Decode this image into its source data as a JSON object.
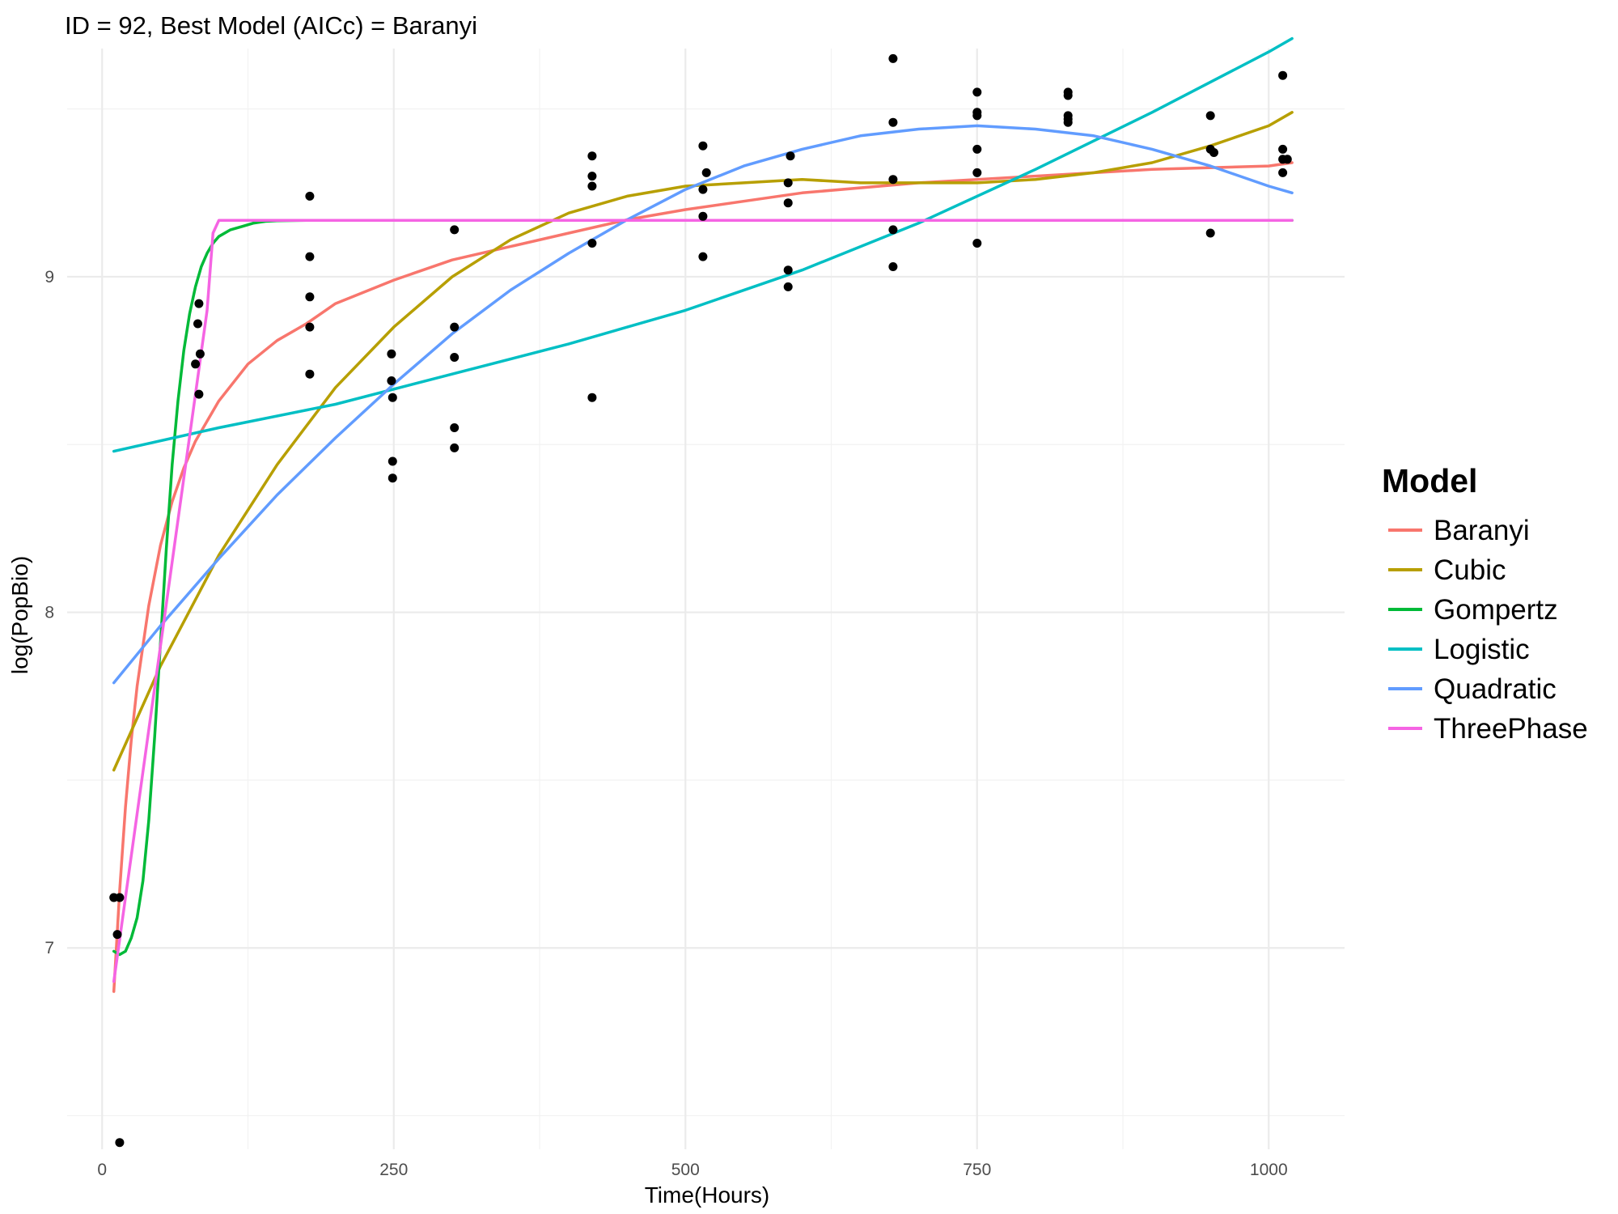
{
  "chart_data": {
    "type": "scatter",
    "title": "ID = 92, Best Model (AICc) = Baranyi",
    "xlabel": "Time(Hours)",
    "ylabel": "log(PopBio)",
    "xlim": [
      -30,
      1065
    ],
    "ylim": [
      6.4,
      9.68
    ],
    "x_ticks": [
      0,
      250,
      500,
      750,
      1000
    ],
    "x_tick_labels": [
      "0",
      "250",
      "500",
      "750",
      "1000"
    ],
    "y_ticks": [
      7,
      8,
      9
    ],
    "y_tick_labels": [
      "7",
      "8",
      "9"
    ],
    "grid": true,
    "legend_position": "right",
    "legend_title": "Model",
    "points": [
      [
        10,
        7.15
      ],
      [
        13,
        7.04
      ],
      [
        15,
        7.15
      ],
      [
        15,
        6.42
      ],
      [
        80,
        8.74
      ],
      [
        82,
        8.86
      ],
      [
        83,
        8.92
      ],
      [
        84,
        8.77
      ],
      [
        83,
        8.65
      ],
      [
        178,
        9.24
      ],
      [
        178,
        9.06
      ],
      [
        178,
        8.94
      ],
      [
        178,
        8.85
      ],
      [
        178,
        8.71
      ],
      [
        248,
        8.77
      ],
      [
        248,
        8.69
      ],
      [
        249,
        8.64
      ],
      [
        249,
        8.45
      ],
      [
        249,
        8.4
      ],
      [
        302,
        9.14
      ],
      [
        302,
        8.85
      ],
      [
        302,
        8.76
      ],
      [
        302,
        8.55
      ],
      [
        302,
        8.49
      ],
      [
        420,
        9.36
      ],
      [
        420,
        9.3
      ],
      [
        420,
        9.27
      ],
      [
        420,
        9.1
      ],
      [
        420,
        8.64
      ],
      [
        515,
        9.39
      ],
      [
        518,
        9.31
      ],
      [
        515,
        9.26
      ],
      [
        515,
        9.18
      ],
      [
        515,
        9.06
      ],
      [
        588,
        9.28
      ],
      [
        588,
        9.22
      ],
      [
        590,
        9.36
      ],
      [
        588,
        9.02
      ],
      [
        588,
        8.97
      ],
      [
        678,
        9.65
      ],
      [
        678,
        9.46
      ],
      [
        678,
        9.29
      ],
      [
        678,
        9.14
      ],
      [
        678,
        9.03
      ],
      [
        750,
        9.55
      ],
      [
        750,
        9.48
      ],
      [
        750,
        9.49
      ],
      [
        750,
        9.38
      ],
      [
        750,
        9.31
      ],
      [
        750,
        9.1
      ],
      [
        828,
        9.55
      ],
      [
        828,
        9.54
      ],
      [
        828,
        9.48
      ],
      [
        828,
        9.47
      ],
      [
        828,
        9.46
      ],
      [
        950,
        9.48
      ],
      [
        950,
        9.38
      ],
      [
        953,
        9.37
      ],
      [
        950,
        9.13
      ],
      [
        1012,
        9.6
      ],
      [
        1012,
        9.38
      ],
      [
        1012,
        9.35
      ],
      [
        1016,
        9.35
      ],
      [
        1012,
        9.31
      ]
    ],
    "series": [
      {
        "name": "Baranyi",
        "color": "#F8766D",
        "x": [
          10,
          15,
          20,
          25,
          30,
          40,
          50,
          60,
          70,
          80,
          100,
          125,
          150,
          175,
          200,
          250,
          300,
          350,
          400,
          450,
          500,
          600,
          700,
          800,
          900,
          1000,
          1020
        ],
        "y": [
          6.87,
          7.17,
          7.42,
          7.62,
          7.78,
          8.02,
          8.2,
          8.33,
          8.43,
          8.51,
          8.63,
          8.74,
          8.81,
          8.86,
          8.92,
          8.99,
          9.05,
          9.09,
          9.13,
          9.17,
          9.2,
          9.25,
          9.28,
          9.3,
          9.32,
          9.33,
          9.34
        ]
      },
      {
        "name": "Cubic",
        "color": "#B79F00",
        "x": [
          10,
          50,
          100,
          150,
          200,
          250,
          300,
          350,
          400,
          450,
          500,
          550,
          600,
          650,
          700,
          750,
          800,
          850,
          900,
          950,
          1000,
          1020
        ],
        "y": [
          7.53,
          7.84,
          8.17,
          8.44,
          8.67,
          8.85,
          9.0,
          9.11,
          9.19,
          9.24,
          9.27,
          9.28,
          9.29,
          9.28,
          9.28,
          9.28,
          9.29,
          9.31,
          9.34,
          9.39,
          9.45,
          9.49
        ]
      },
      {
        "name": "Gompertz",
        "color": "#00BA38",
        "x": [
          10,
          15,
          20,
          25,
          30,
          35,
          40,
          45,
          50,
          55,
          60,
          65,
          70,
          75,
          80,
          85,
          90,
          95,
          100,
          110,
          120,
          130,
          140,
          150,
          175,
          200,
          300,
          500,
          750,
          1020
        ],
        "y": [
          6.99,
          6.98,
          6.99,
          7.03,
          7.09,
          7.2,
          7.38,
          7.63,
          7.91,
          8.19,
          8.44,
          8.63,
          8.78,
          8.89,
          8.97,
          9.03,
          9.07,
          9.1,
          9.12,
          9.14,
          9.15,
          9.16,
          9.165,
          9.167,
          9.168,
          9.168,
          9.168,
          9.168,
          9.168,
          9.168
        ]
      },
      {
        "name": "Logistic",
        "color": "#00BFC4",
        "x": [
          10,
          100,
          200,
          300,
          400,
          500,
          600,
          700,
          800,
          900,
          1000,
          1020
        ],
        "y": [
          8.48,
          8.55,
          8.62,
          8.71,
          8.8,
          8.9,
          9.02,
          9.16,
          9.32,
          9.49,
          9.67,
          9.71
        ]
      },
      {
        "name": "Quadratic",
        "color": "#619CFF",
        "x": [
          10,
          50,
          100,
          150,
          200,
          250,
          300,
          350,
          400,
          450,
          500,
          550,
          600,
          650,
          700,
          750,
          800,
          850,
          900,
          950,
          1000,
          1020
        ],
        "y": [
          7.79,
          7.96,
          8.16,
          8.35,
          8.52,
          8.68,
          8.83,
          8.96,
          9.07,
          9.17,
          9.26,
          9.33,
          9.38,
          9.42,
          9.44,
          9.45,
          9.44,
          9.42,
          9.38,
          9.33,
          9.27,
          9.25
        ]
      },
      {
        "name": "ThreePhase",
        "color": "#F564E3",
        "x": [
          10,
          20,
          30,
          40,
          50,
          60,
          70,
          80,
          90,
          95,
          100,
          1020
        ],
        "y": [
          6.9,
          7.15,
          7.4,
          7.65,
          7.9,
          8.15,
          8.4,
          8.65,
          8.9,
          9.13,
          9.168,
          9.168
        ]
      }
    ]
  }
}
